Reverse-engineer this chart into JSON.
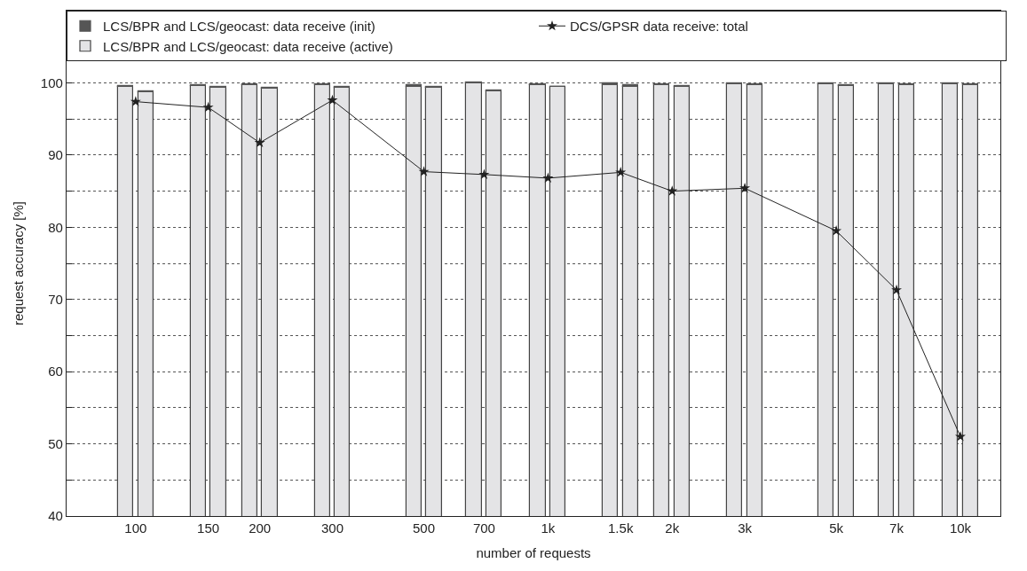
{
  "chart_data": {
    "type": "bar",
    "xlabel": "number of requests",
    "ylabel": "request accuracy [%]",
    "x": [
      100,
      150,
      200,
      300,
      500,
      700,
      1000,
      1500,
      2000,
      3000,
      5000,
      7000,
      10000
    ],
    "xlim": [
      68,
      12500
    ],
    "log": "x",
    "xticks": [
      100,
      150,
      200,
      300,
      500,
      700,
      {
        "value": 1000,
        "label": "1k"
      },
      {
        "value": 1500,
        "label": "1.5k"
      },
      {
        "value": 2000,
        "label": "2k"
      },
      {
        "value": 3000,
        "label": "3k"
      },
      {
        "value": 5000,
        "label": "5k"
      },
      {
        "value": 7000,
        "label": "7k"
      },
      {
        "value": 10000,
        "label": "10k"
      }
    ],
    "ylim": [
      40,
      110
    ],
    "yticks": [
      40,
      {
        "value": 45,
        "label": null
      },
      50,
      {
        "value": 55,
        "label": null
      },
      60,
      {
        "value": 65,
        "label": null
      },
      70,
      {
        "value": 75,
        "label": null
      },
      80,
      {
        "value": 85,
        "label": null
      },
      90,
      {
        "value": 95,
        "label": null
      },
      100
    ],
    "grid": "y",
    "legend": "top",
    "series": [
      {
        "name": "LCS/BPR and LCS/geocast: data receive (active)",
        "color": "#e4e4e6",
        "values": [
          99.5,
          99.6,
          99.7,
          99.7,
          99.5,
          99.9,
          99.7,
          99.7,
          99.7,
          99.8,
          99.8,
          99.8,
          99.8
        ]
      },
      {
        "name": "LCS/BPR and LCS/geocast: data receive (init)",
        "color": "#555555",
        "base": [
          99.5,
          99.6,
          99.7,
          99.7,
          99.5,
          99.9,
          99.7,
          99.7,
          99.7,
          99.8,
          99.8,
          99.8,
          99.8
        ],
        "values": [
          0.1,
          0.1,
          0.1,
          0.1,
          0.2,
          0.1,
          0.1,
          0.2,
          0.1,
          0.1,
          0.1,
          0.1,
          0.1
        ]
      },
      {
        "color": "#e4e4e6",
        "values": [
          98.7,
          99.3,
          99.2,
          99.3,
          99.3,
          98.8,
          99.4,
          99.5,
          99.5,
          99.7,
          99.6,
          99.7,
          99.7
        ]
      },
      {
        "color": "#555555",
        "base": [
          98.7,
          99.3,
          99.2,
          99.3,
          99.3,
          98.8,
          99.4,
          99.5,
          99.5,
          99.7,
          99.6,
          99.7,
          99.7
        ],
        "values": [
          0.1,
          0.1,
          0.1,
          0.1,
          0.2,
          0.1,
          0.1,
          0.2,
          0.1,
          0.1,
          0.1,
          0.1,
          0.1
        ]
      },
      {
        "name": "DCS/GPSR data receive: total",
        "type": "line",
        "color": "#222222",
        "marker": "star",
        "values": [
          97.4,
          96.6,
          91.7,
          97.6,
          87.7,
          87.3,
          86.8,
          87.6,
          85.0,
          85.4,
          79.5,
          71.3,
          51.0
        ]
      }
    ]
  }
}
